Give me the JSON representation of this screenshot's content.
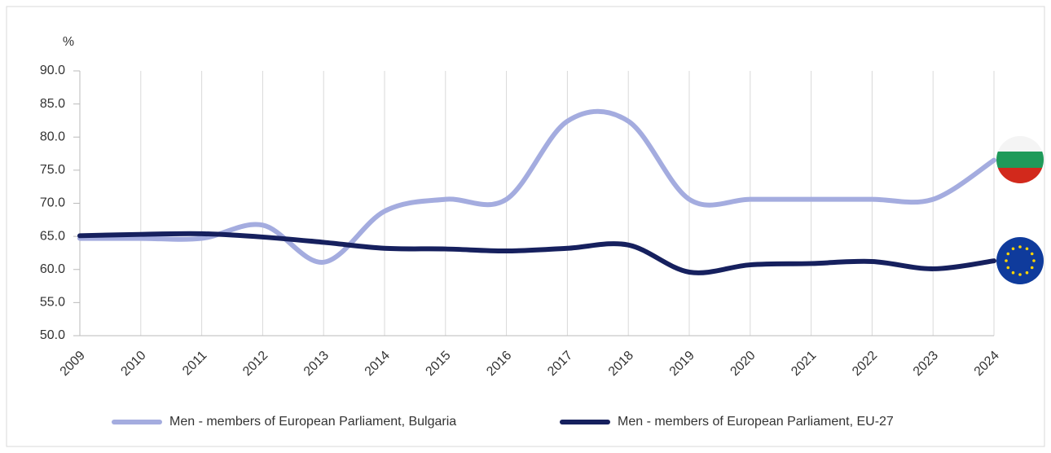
{
  "chart_data": {
    "type": "line",
    "y_unit": "%",
    "categories": [
      "2009",
      "2010",
      "2011",
      "2012",
      "2013",
      "2014",
      "2015",
      "2016",
      "2017",
      "2018",
      "2019",
      "2020",
      "2021",
      "2022",
      "2023",
      "2024"
    ],
    "series": [
      {
        "name": "Men - members of European Parliament, Bulgaria",
        "color": "#a4acdf",
        "values": [
          64.7,
          64.7,
          64.7,
          66.7,
          61.1,
          68.8,
          70.6,
          70.6,
          82.4,
          82.4,
          70.6,
          70.6,
          70.6,
          70.6,
          70.6,
          76.5
        ]
      },
      {
        "name": "Men - members of European Parliament, EU-27",
        "color": "#16205e",
        "values": [
          65.1,
          65.3,
          65.4,
          64.9,
          64.1,
          63.2,
          63.1,
          62.8,
          63.2,
          63.7,
          59.6,
          60.7,
          60.9,
          61.2,
          60.1,
          61.3
        ]
      }
    ],
    "ylim": [
      50,
      90
    ],
    "yticks": [
      {
        "value": 50,
        "label": "50.0"
      },
      {
        "value": 55,
        "label": "55.0"
      },
      {
        "value": 60,
        "label": "60.0"
      },
      {
        "value": 65,
        "label": "65.0"
      },
      {
        "value": 70,
        "label": "70.0"
      },
      {
        "value": 75,
        "label": "75.0"
      },
      {
        "value": 80,
        "label": "80.0"
      },
      {
        "value": 85,
        "label": "85.0"
      },
      {
        "value": 90,
        "label": "90.0"
      }
    ],
    "grid": true,
    "legend": "bottom"
  }
}
